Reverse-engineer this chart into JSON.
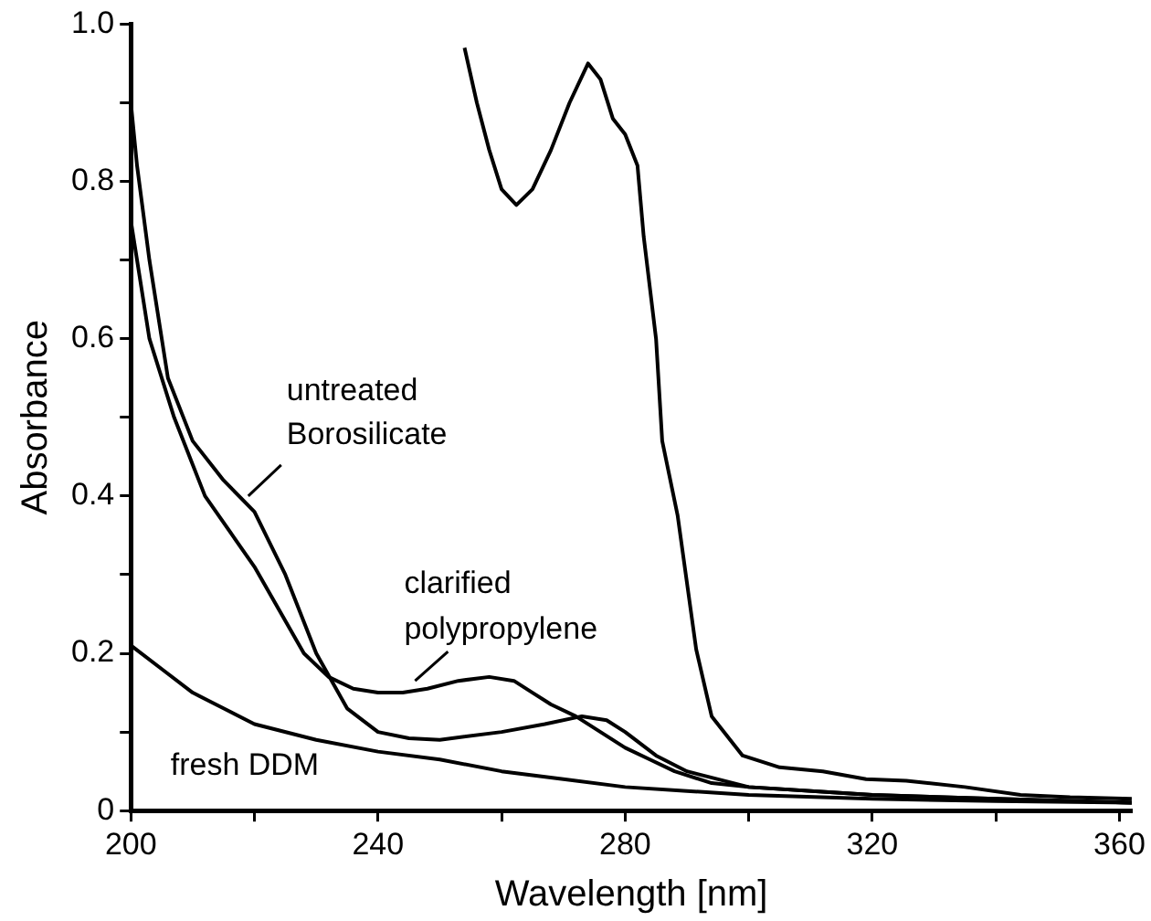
{
  "chart_data": {
    "type": "line",
    "xlabel": "Wavelength [nm]",
    "ylabel": "Absorbance",
    "xlim": [
      200,
      362
    ],
    "ylim": [
      0,
      1.0
    ],
    "xticks": [
      200,
      {
        "value": 220,
        "label": null
      },
      240,
      {
        "value": 260,
        "label": null
      },
      280,
      {
        "value": 300,
        "label": null
      },
      320,
      {
        "value": 340,
        "label": null
      },
      360
    ],
    "yticks": [
      {
        "value": 0,
        "label": "0"
      },
      {
        "value": 0.1,
        "label": null
      },
      0.2,
      {
        "value": 0.3,
        "label": null
      },
      0.4,
      {
        "value": 0.5,
        "label": null
      },
      0.6,
      {
        "value": 0.7,
        "label": null
      },
      0.8,
      {
        "value": 0.9,
        "label": null
      },
      {
        "value": 1.0,
        "label": "1.0"
      }
    ],
    "grid": false,
    "legend": false,
    "marker": "none",
    "line_style": "solid",
    "series": [
      {
        "color": "#000000",
        "x": [
          254,
          256,
          258,
          260,
          262.4,
          265,
          268,
          271,
          274,
          276,
          278,
          280,
          282,
          283,
          285,
          286,
          288.5,
          291.5,
          294,
          299,
          305,
          312,
          319,
          325.5,
          335,
          344,
          352,
          362
        ],
        "values": [
          0.97,
          0.9,
          0.84,
          0.79,
          0.77,
          0.79,
          0.84,
          0.9,
          0.95,
          0.93,
          0.88,
          0.86,
          0.82,
          0.73,
          0.6,
          0.47,
          0.375,
          0.205,
          0.12,
          0.07,
          0.055,
          0.05,
          0.04,
          0.038,
          0.03,
          0.02,
          0.017,
          0.015
        ]
      },
      {
        "color": "#000000",
        "x": [
          200,
          201,
          203,
          206,
          210,
          215,
          220,
          225,
          230,
          235,
          240,
          245,
          250,
          260,
          267,
          273,
          277,
          280,
          285,
          290,
          300,
          320,
          340,
          362
        ],
        "values": [
          0.9,
          0.82,
          0.7,
          0.55,
          0.47,
          0.42,
          0.38,
          0.3,
          0.2,
          0.13,
          0.1,
          0.092,
          0.09,
          0.1,
          0.11,
          0.12,
          0.115,
          0.1,
          0.07,
          0.05,
          0.03,
          0.02,
          0.015,
          0.01
        ]
      },
      {
        "color": "#000000",
        "x": [
          200,
          201,
          203,
          207,
          212,
          220,
          228,
          232,
          236,
          240,
          244,
          248,
          253,
          258,
          262,
          265,
          268,
          272,
          276,
          280,
          284,
          288,
          294,
          300,
          320,
          340,
          362
        ],
        "values": [
          0.75,
          0.7,
          0.6,
          0.5,
          0.4,
          0.31,
          0.2,
          0.17,
          0.155,
          0.15,
          0.15,
          0.155,
          0.165,
          0.17,
          0.165,
          0.15,
          0.135,
          0.12,
          0.1,
          0.08,
          0.065,
          0.05,
          0.035,
          0.03,
          0.02,
          0.015,
          0.01
        ]
      },
      {
        "color": "#000000",
        "x": [
          200,
          205,
          210,
          215,
          220,
          230,
          240,
          250,
          260,
          270,
          280,
          290,
          300,
          320,
          340,
          362
        ],
        "values": [
          0.21,
          0.18,
          0.15,
          0.13,
          0.11,
          0.09,
          0.075,
          0.065,
          0.05,
          0.04,
          0.03,
          0.025,
          0.02,
          0.015,
          0.012,
          0.01
        ]
      }
    ],
    "annotations": [
      {
        "text": "untreated\nBorosilicate",
        "x": 219,
        "y": 0.4
      },
      {
        "text": "clarified\npolypropylene",
        "x": 246,
        "y": 0.165
      },
      {
        "text": "fresh DDM",
        "x": 215,
        "y": 0.115
      }
    ]
  }
}
